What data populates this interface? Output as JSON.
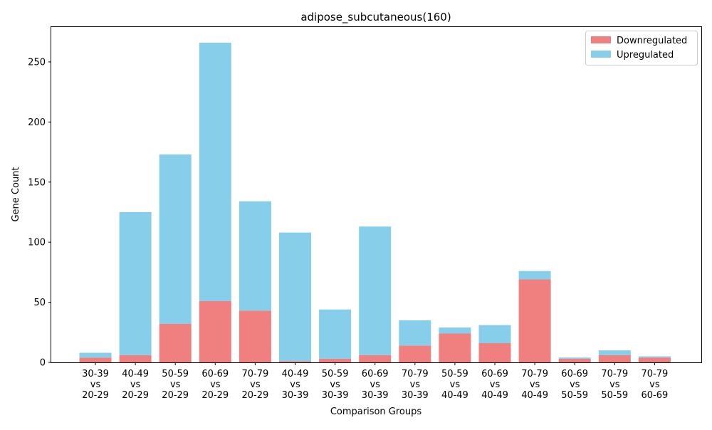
{
  "chart_data": {
    "type": "bar",
    "stacked": true,
    "title": "adipose_subcutaneous(160)",
    "xlabel": "Comparison Groups",
    "ylabel": "Gene Count",
    "ylim": [
      0,
      279
    ],
    "yticks": [
      0,
      50,
      100,
      150,
      200,
      250
    ],
    "grid": false,
    "legend_position": "top-right",
    "categories": [
      [
        "30-39",
        "vs",
        "20-29"
      ],
      [
        "40-49",
        "vs",
        "20-29"
      ],
      [
        "50-59",
        "vs",
        "20-29"
      ],
      [
        "60-69",
        "vs",
        "20-29"
      ],
      [
        "70-79",
        "vs",
        "20-29"
      ],
      [
        "40-49",
        "vs",
        "30-39"
      ],
      [
        "50-59",
        "vs",
        "30-39"
      ],
      [
        "60-69",
        "vs",
        "30-39"
      ],
      [
        "70-79",
        "vs",
        "30-39"
      ],
      [
        "50-59",
        "vs",
        "40-49"
      ],
      [
        "60-69",
        "vs",
        "40-49"
      ],
      [
        "70-79",
        "vs",
        "40-49"
      ],
      [
        "60-69",
        "vs",
        "50-59"
      ],
      [
        "70-79",
        "vs",
        "50-59"
      ],
      [
        "70-79",
        "vs",
        "60-69"
      ]
    ],
    "series": [
      {
        "name": "Downregulated",
        "color": "#f08080",
        "values": [
          4,
          6,
          32,
          51,
          43,
          1,
          3,
          6,
          14,
          24,
          16,
          69,
          3,
          6,
          4
        ]
      },
      {
        "name": "Upregulated",
        "color": "#87ceeb",
        "values": [
          4,
          119,
          141,
          215,
          91,
          107,
          41,
          107,
          21,
          5,
          15,
          7,
          1,
          4,
          1
        ]
      }
    ]
  }
}
